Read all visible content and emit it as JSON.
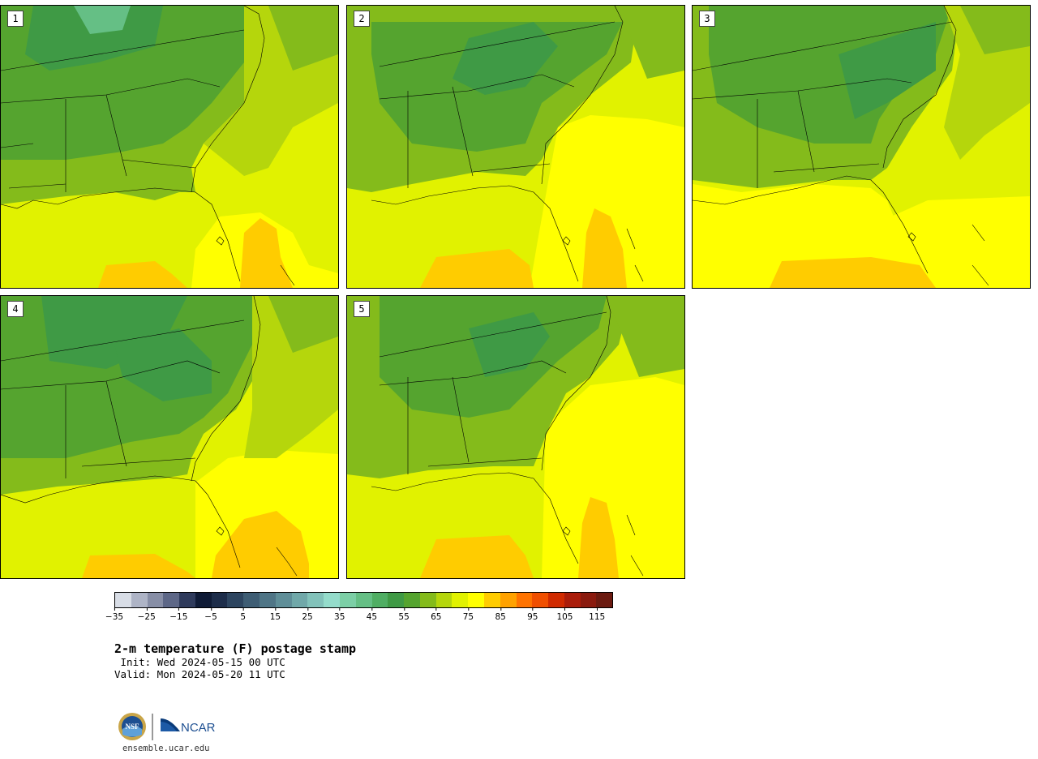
{
  "panels": [
    {
      "label": "1"
    },
    {
      "label": "2"
    },
    {
      "label": "3"
    },
    {
      "label": "4"
    },
    {
      "label": "5"
    }
  ],
  "colorbar": {
    "colors": [
      "#d8dde6",
      "#aeb4c6",
      "#878ea6",
      "#5d6787",
      "#2f3b5c",
      "#0f1b36",
      "#1d2d4a",
      "#2d4560",
      "#3e5d74",
      "#4f7586",
      "#5f8e98",
      "#70a8a9",
      "#82c2ba",
      "#94dccb",
      "#7ccfa6",
      "#65bf85",
      "#4fae63",
      "#3f9a45",
      "#55a42f",
      "#84bb1b",
      "#b5d60c",
      "#e1f200",
      "#ffff00",
      "#ffcc00",
      "#ffa200",
      "#ff7300",
      "#f04f00",
      "#d02a00",
      "#aa1c0a",
      "#8a1a0e",
      "#6b1a10"
    ],
    "tick_labels": [
      "−35",
      "−25",
      "−15",
      "−5",
      "5",
      "15",
      "25",
      "35",
      "45",
      "55",
      "65",
      "75",
      "85",
      "95",
      "105",
      "115"
    ],
    "tick_indices": [
      0,
      2,
      4,
      6,
      8,
      10,
      12,
      14,
      16,
      18,
      20,
      22,
      24,
      26,
      28,
      30
    ]
  },
  "title": "2-m temperature (F) postage stamp",
  "init": " Init: Wed 2024-05-15 00 UTC",
  "valid": "Valid: Mon 2024-05-20 11 UTC",
  "logos": {
    "nsf": "NSF",
    "ncar": "NCAR",
    "url": "ensemble.ucar.edu"
  },
  "colors": {
    "ocean_warm": "#ffff00",
    "ocean_hot": "#ffcc00",
    "land_mild": "#84bb1b",
    "land_cool": "#55a42f",
    "land_cooler": "#3f9a45",
    "transition": "#e1f200",
    "coastal": "#b5d60c"
  }
}
